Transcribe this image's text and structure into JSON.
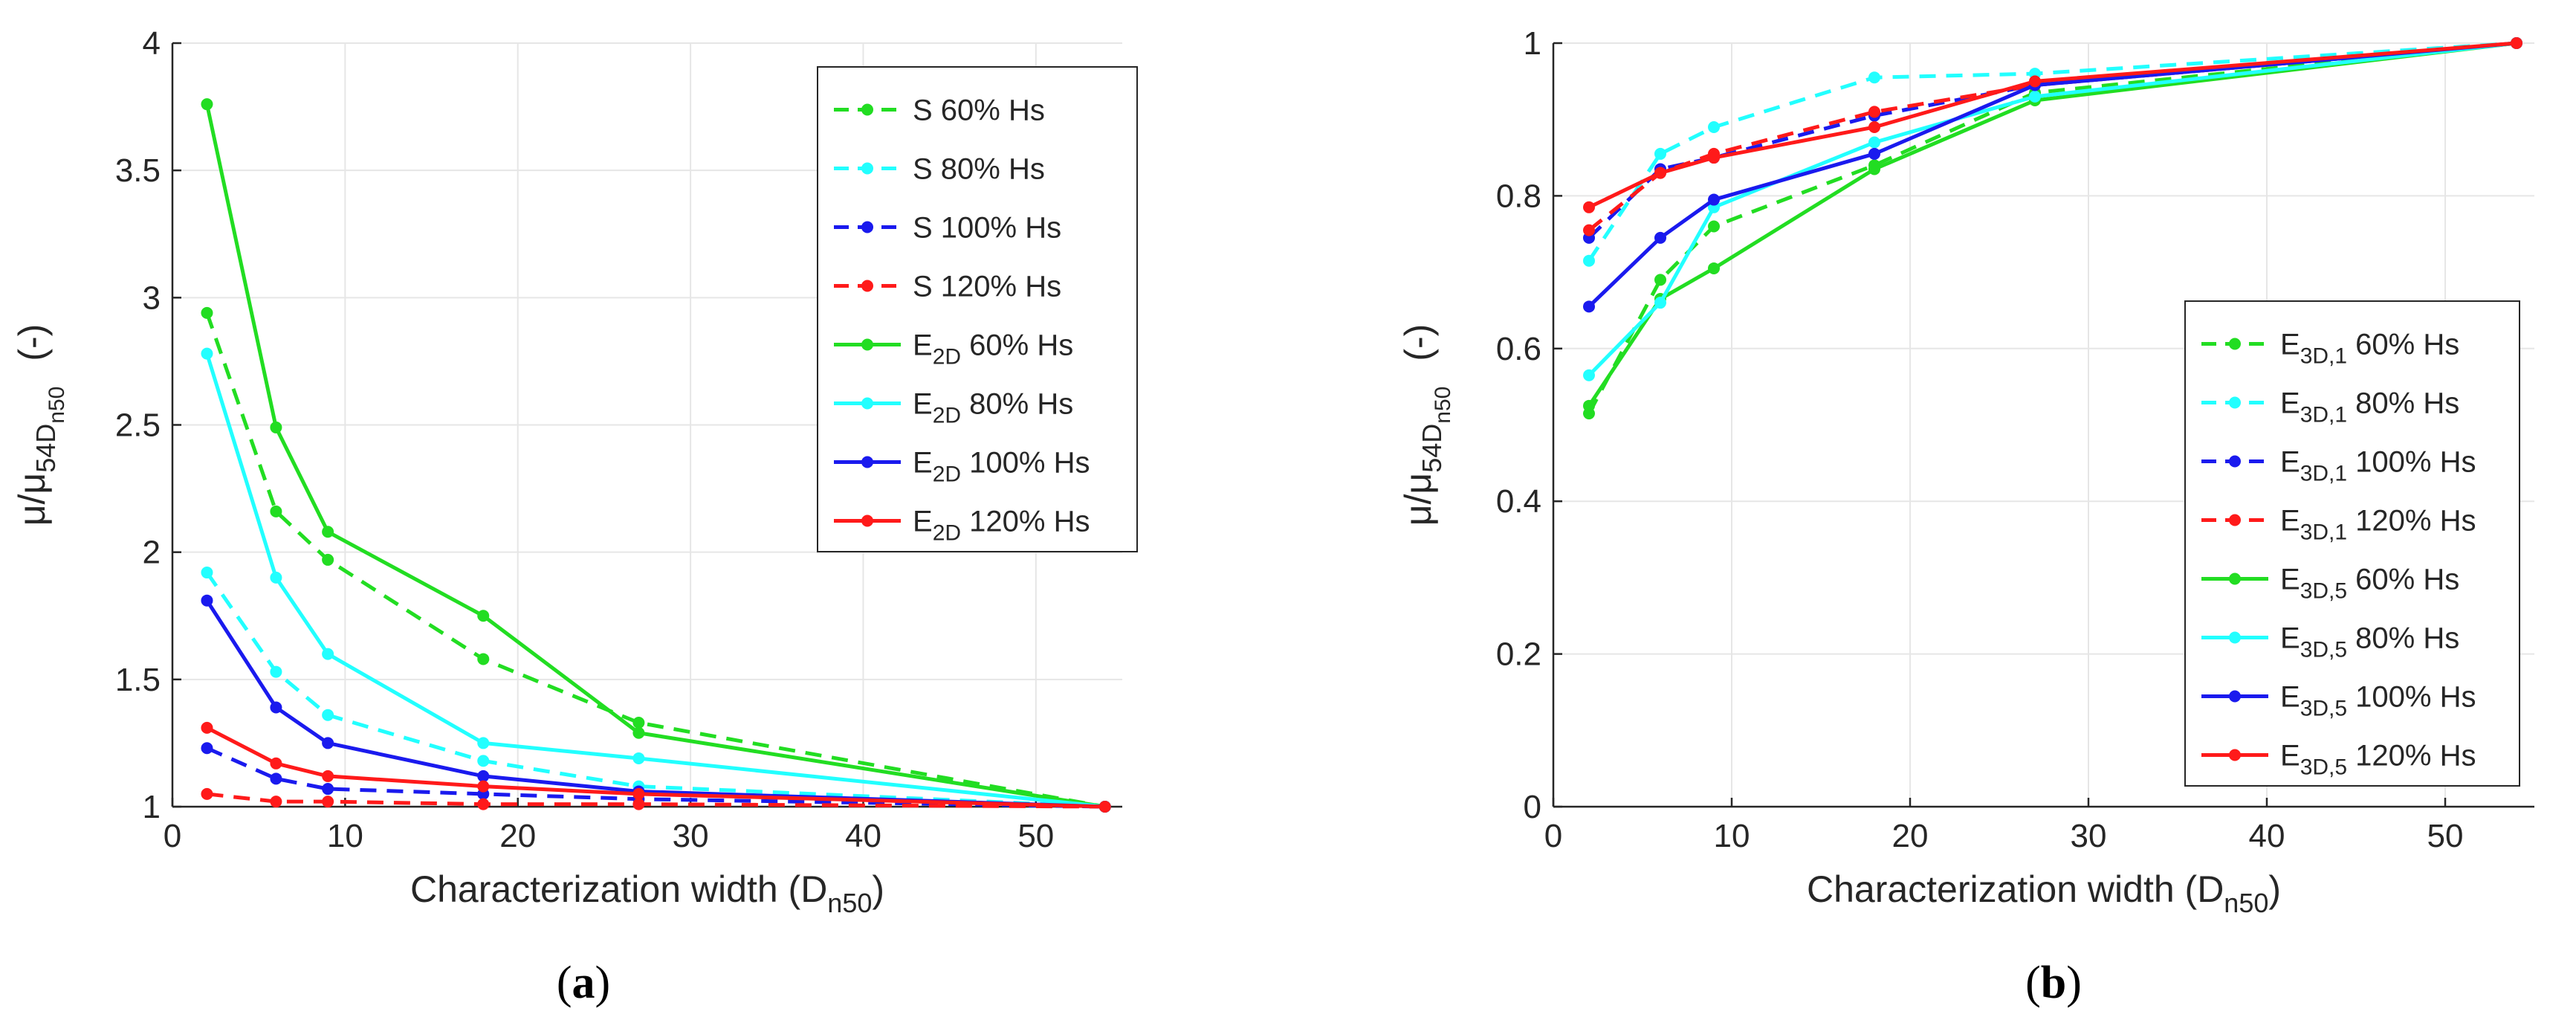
{
  "chart_data": [
    {
      "type": "line",
      "panel_label": "a",
      "xlabel": "Characterization width (D",
      "xlabel_sub": "n50",
      "xlabel_close": ")",
      "ylabel_mu": "μ/μ",
      "ylabel_sub1": "54D",
      "ylabel_sub2": "n50",
      "ylabel_unit": "(-)",
      "xlim": [
        0,
        55
      ],
      "ylim": [
        1,
        4
      ],
      "xticks": [
        0,
        10,
        20,
        30,
        40,
        50
      ],
      "yticks": [
        1,
        1.5,
        2,
        2.5,
        3,
        3.5,
        4
      ],
      "ytick_labels": [
        "1",
        "1.5",
        "2",
        "2.5",
        "3",
        "3.5",
        "4"
      ],
      "grid": true,
      "legend_position": "top-right",
      "x": [
        2,
        6,
        9,
        18,
        27,
        54
      ],
      "series": [
        {
          "id": "s60",
          "style": "dashed",
          "color": "#22dd22",
          "legend": {
            "main": "S 60% Hs"
          },
          "values": [
            2.94,
            2.16,
            1.97,
            1.58,
            1.33,
            1.0
          ]
        },
        {
          "id": "s80",
          "style": "dashed",
          "color": "#22ffff",
          "legend": {
            "main": "S 80% Hs"
          },
          "values": [
            1.92,
            1.53,
            1.36,
            1.18,
            1.08,
            1.0
          ]
        },
        {
          "id": "s100",
          "style": "dashed",
          "color": "#1a1aee",
          "legend": {
            "main": "S 100% Hs"
          },
          "values": [
            1.23,
            1.11,
            1.07,
            1.05,
            1.03,
            1.0
          ]
        },
        {
          "id": "s120",
          "style": "dashed",
          "color": "#ff1a1a",
          "legend": {
            "main": "S 120% Hs"
          },
          "values": [
            1.05,
            1.02,
            1.02,
            1.01,
            1.01,
            1.0
          ]
        },
        {
          "id": "e60",
          "style": "solid",
          "color": "#22dd22",
          "legend": {
            "main": "E",
            "sub": "2D",
            "rest": " 60% Hs"
          },
          "values": [
            3.76,
            2.49,
            2.08,
            1.75,
            1.29,
            1.0
          ]
        },
        {
          "id": "e80",
          "style": "solid",
          "color": "#22ffff",
          "legend": {
            "main": "E",
            "sub": "2D",
            "rest": " 80% Hs"
          },
          "values": [
            2.78,
            1.9,
            1.6,
            1.25,
            1.19,
            1.0
          ]
        },
        {
          "id": "e100",
          "style": "solid",
          "color": "#1a1aee",
          "legend": {
            "main": "E",
            "sub": "2D",
            "rest": " 100% Hs"
          },
          "values": [
            1.81,
            1.39,
            1.25,
            1.12,
            1.06,
            1.0
          ]
        },
        {
          "id": "e120",
          "style": "solid",
          "color": "#ff1a1a",
          "legend": {
            "main": "E",
            "sub": "2D",
            "rest": " 120% Hs"
          },
          "values": [
            1.31,
            1.17,
            1.12,
            1.08,
            1.05,
            1.0
          ]
        }
      ]
    },
    {
      "type": "line",
      "panel_label": "b",
      "xlabel": "Characterization width (D",
      "xlabel_sub": "n50",
      "xlabel_close": ")",
      "ylabel_mu": "μ/μ",
      "ylabel_sub1": "54D",
      "ylabel_sub2": "n50",
      "ylabel_unit": "(-)",
      "xlim": [
        0,
        55
      ],
      "ylim": [
        0,
        1
      ],
      "xticks": [
        0,
        10,
        20,
        30,
        40,
        50
      ],
      "yticks": [
        0,
        0.2,
        0.4,
        0.6,
        0.8,
        1
      ],
      "ytick_labels": [
        "0",
        "0.2",
        "0.4",
        "0.6",
        "0.8",
        "1"
      ],
      "grid": true,
      "legend_position": "lower-right",
      "x": [
        2,
        6,
        9,
        18,
        27,
        54
      ],
      "series": [
        {
          "id": "b1_60",
          "style": "dashed",
          "color": "#22dd22",
          "legend": {
            "main": "E",
            "sub": "3D,1",
            "rest": " 60% Hs"
          },
          "values": [
            0.515,
            0.69,
            0.76,
            0.84,
            0.935,
            1.0
          ]
        },
        {
          "id": "b1_80",
          "style": "dashed",
          "color": "#22ffff",
          "legend": {
            "main": "E",
            "sub": "3D,1",
            "rest": " 80% Hs"
          },
          "values": [
            0.715,
            0.855,
            0.89,
            0.955,
            0.96,
            1.0
          ]
        },
        {
          "id": "b1_100",
          "style": "dashed",
          "color": "#1a1aee",
          "legend": {
            "main": "E",
            "sub": "3D,1",
            "rest": " 100% Hs"
          },
          "values": [
            0.745,
            0.835,
            0.85,
            0.905,
            0.945,
            1.0
          ]
        },
        {
          "id": "b1_120",
          "style": "dashed",
          "color": "#ff1a1a",
          "legend": {
            "main": "E",
            "sub": "3D,1",
            "rest": " 120% Hs"
          },
          "values": [
            0.755,
            0.83,
            0.855,
            0.91,
            0.945,
            1.0
          ]
        },
        {
          "id": "b5_60",
          "style": "solid",
          "color": "#22dd22",
          "legend": {
            "main": "E",
            "sub": "3D,5",
            "rest": " 60% Hs"
          },
          "values": [
            0.525,
            0.665,
            0.705,
            0.835,
            0.925,
            1.0
          ]
        },
        {
          "id": "b5_80",
          "style": "solid",
          "color": "#22ffff",
          "legend": {
            "main": "E",
            "sub": "3D,5",
            "rest": " 80% Hs"
          },
          "values": [
            0.565,
            0.66,
            0.785,
            0.87,
            0.93,
            1.0
          ]
        },
        {
          "id": "b5_100",
          "style": "solid",
          "color": "#1a1aee",
          "legend": {
            "main": "E",
            "sub": "3D,5",
            "rest": " 100% Hs"
          },
          "values": [
            0.655,
            0.745,
            0.795,
            0.855,
            0.945,
            1.0
          ]
        },
        {
          "id": "b5_120",
          "style": "solid",
          "color": "#ff1a1a",
          "legend": {
            "main": "E",
            "sub": "3D,5",
            "rest": " 120% Hs"
          },
          "values": [
            0.785,
            0.83,
            0.85,
            0.89,
            0.95,
            1.0
          ]
        }
      ]
    }
  ]
}
